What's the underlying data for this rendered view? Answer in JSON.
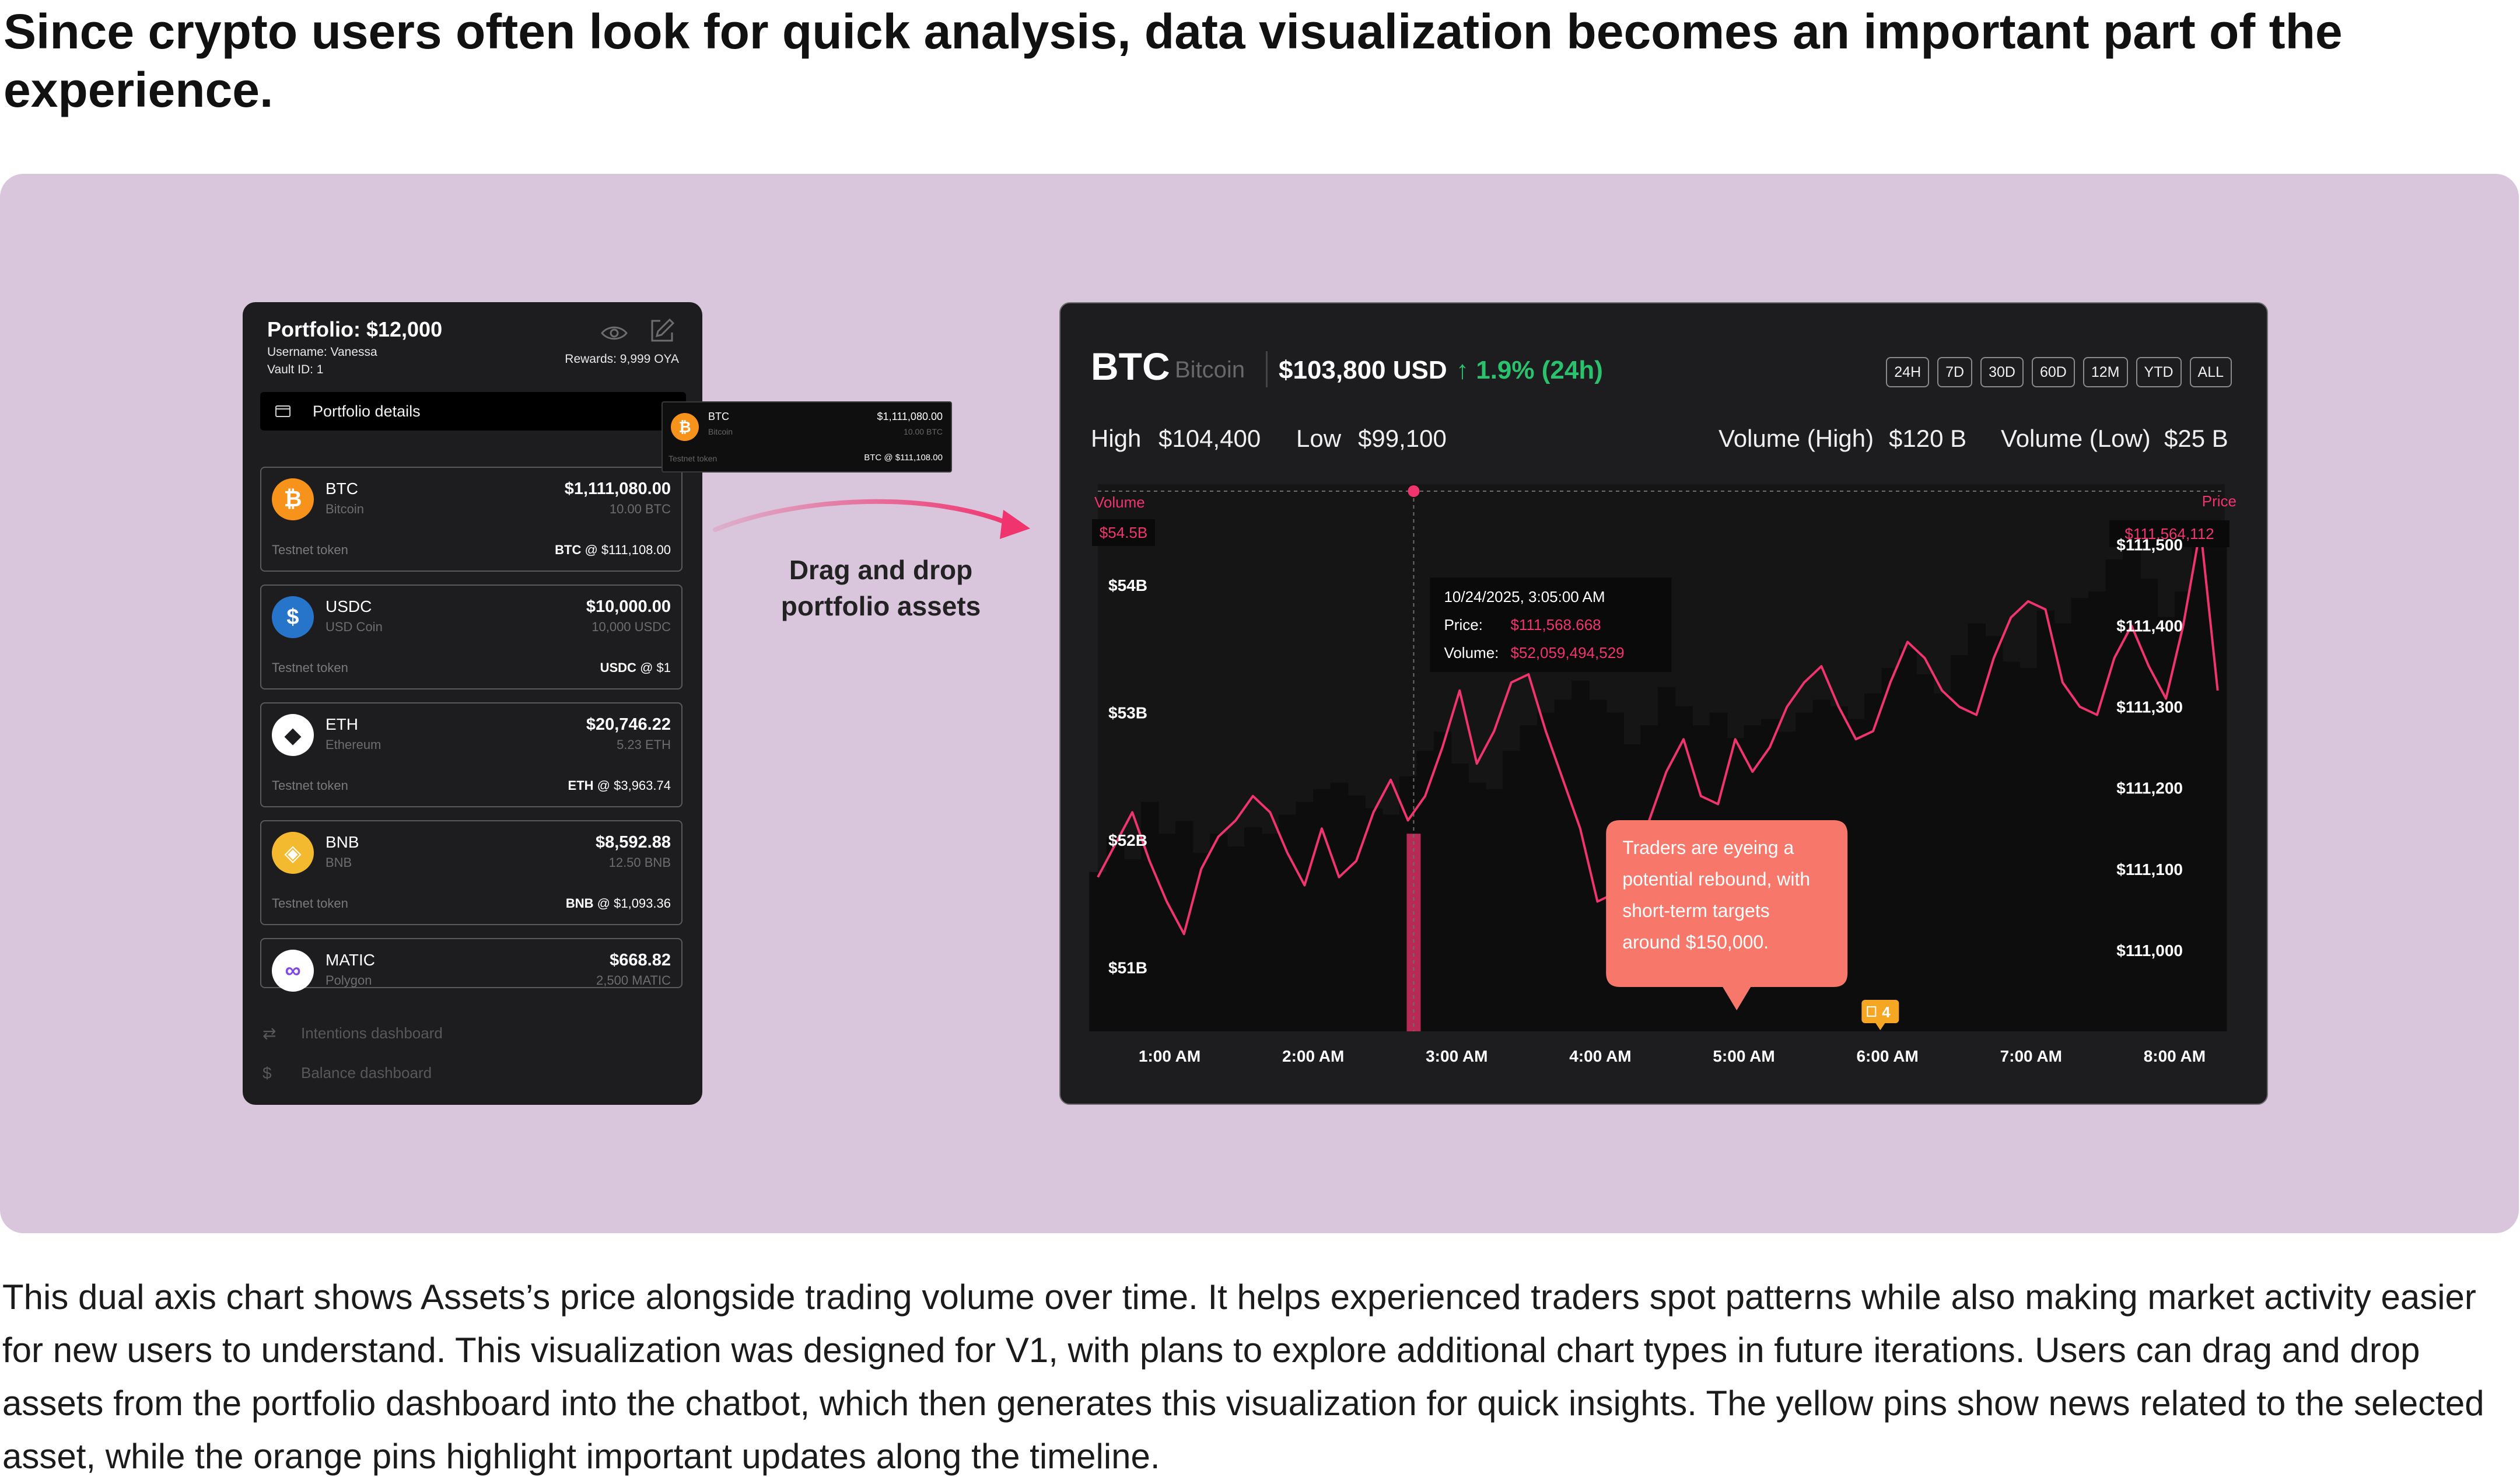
{
  "heading": "Since crypto users often look for quick analysis, data visualization becomes an important part of the experience.",
  "description": "This dual axis chart shows Assets’s price alongside trading volume over time. It helps experienced traders spot patterns while also making market activity easier for new users to understand. This visualization was designed for V1, with plans to explore additional chart types in future iterations. Users can drag and drop assets from the portfolio dashboard into the chatbot, which then generates this visualization for quick insights. The yellow pins show news related to the selected asset, while the orange pins highlight important updates along the timeline.",
  "colors": {
    "stage_bg": "#d9c5dc",
    "panel_bg": "#1d1d1f",
    "accent_pink": "#f0346e",
    "up_green": "#2bc26e",
    "callout": "#f7786b",
    "pin": "#f5a623"
  },
  "portfolio": {
    "title": "Portfolio: $12,000",
    "username": "Username: Vanessa",
    "vault": "Vault ID: 1",
    "rewards": "Rewards: 9,999 OYA",
    "details_label": "Portfolio details",
    "assets": [
      {
        "symbol": "BTC",
        "name": "Bitcoin",
        "value": "$1,111,080.00",
        "qty": "10.00 BTC",
        "token": "Testnet token",
        "price_sym": "BTC",
        "price": "@ $111,108.00",
        "icon": "bitcoin-icon",
        "color": "#f7931a",
        "glyph": "₿"
      },
      {
        "symbol": "USDC",
        "name": "USD Coin",
        "value": "$10,000.00",
        "qty": "10,000 USDC",
        "token": "Testnet token",
        "price_sym": "USDC",
        "price": "@ $1",
        "icon": "usdc-icon",
        "color": "#2775ca",
        "glyph": "$"
      },
      {
        "symbol": "ETH",
        "name": "Ethereum",
        "value": "$20,746.22",
        "qty": "5.23 ETH",
        "token": "Testnet token",
        "price_sym": "ETH",
        "price": "@ $3,963.74",
        "icon": "ethereum-icon",
        "color": "#ffffff",
        "glyph": "◆"
      },
      {
        "symbol": "BNB",
        "name": "BNB",
        "value": "$8,592.88",
        "qty": "12.50 BNB",
        "token": "Testnet token",
        "price_sym": "BNB",
        "price": "@ $1,093.36",
        "icon": "bnb-icon",
        "color": "#f3ba2f",
        "glyph": "◈"
      },
      {
        "symbol": "MATIC",
        "name": "Polygon",
        "value": "$668.82",
        "qty": "2,500 MATIC",
        "token": "",
        "price_sym": "",
        "price": "",
        "icon": "polygon-icon",
        "color": "#ffffff",
        "glyph": "∞"
      }
    ],
    "nav": [
      {
        "label": "Intentions dashboard",
        "icon": "repeat-icon"
      },
      {
        "label": "Balance dashboard",
        "icon": "dollar-icon"
      }
    ]
  },
  "ghost": {
    "symbol": "BTC",
    "name": "Bitcoin",
    "value": "$1,111,080.00",
    "qty": "10.00 BTC",
    "token": "Testnet token",
    "price": "BTC @ $111,108.00"
  },
  "drag_label": [
    "Drag and drop",
    "portfolio assets"
  ],
  "chart_panel": {
    "symbol": "BTC",
    "name": "Bitcoin",
    "price": "$103,800 USD",
    "change": "↑ 1.9% (24h)",
    "ranges": [
      "24H",
      "7D",
      "30D",
      "60D",
      "12M",
      "YTD",
      "ALL"
    ],
    "high_label": "High",
    "high_value": "$104,400",
    "low_label": "Low",
    "low_value": "$99,100",
    "vol_high_label": "Volume (High)",
    "vol_high_value": "$120 B",
    "vol_low_label": "Volume (Low)",
    "vol_low_value": "$25 B"
  },
  "chart_data": {
    "type": "line",
    "dual_axis": true,
    "left_axis_label": "Volume",
    "right_axis_label": "Price",
    "left_ticks": [
      "$54B",
      "$53B",
      "$52B",
      "$51B"
    ],
    "right_ticks": [
      "$111,500",
      "$111,400",
      "$111,300",
      "$111,200",
      "$111,100",
      "$111,000"
    ],
    "x_ticks": [
      "1:00 AM",
      "2:00 AM",
      "3:00 AM",
      "4:00 AM",
      "5:00 AM",
      "6:00 AM",
      "7:00 AM",
      "8:00 AM"
    ],
    "left_marker": "$54.5B",
    "right_marker": "$111,564,112",
    "volume_range": [
      50.5,
      54.7
    ],
    "price_range": [
      110900,
      111560
    ],
    "x_range": [
      0.5,
      8.35
    ],
    "grid": false,
    "tooltip": {
      "time": "10/24/2025, 3:05:00 AM",
      "price_label": "Price:",
      "price": "$111,568.668",
      "volume_label": "Volume:",
      "volume": "$52,059,494,529"
    },
    "highlight_x": 2.7,
    "highlight_volume": 52.05,
    "annotation": "Traders are eyeing a potential rebound, with short-term targets around $150,000.",
    "annotation_x": 4.95,
    "pin": {
      "label": "4",
      "x": 5.95
    },
    "volume_series": {
      "name": "Volume",
      "x": [
        0.5,
        0.62,
        0.74,
        0.86,
        0.98,
        1.1,
        1.22,
        1.34,
        1.46,
        1.58,
        1.7,
        1.82,
        1.94,
        2.06,
        2.18,
        2.3,
        2.42,
        2.54,
        2.66,
        2.78,
        2.9,
        3.02,
        3.14,
        3.26,
        3.38,
        3.5,
        3.62,
        3.74,
        3.86,
        3.98,
        4.1,
        4.22,
        4.34,
        4.46,
        4.58,
        4.7,
        4.82,
        4.94,
        5.06,
        5.18,
        5.3,
        5.42,
        5.54,
        5.66,
        5.78,
        5.9,
        6.02,
        6.14,
        6.26,
        6.38,
        6.5,
        6.62,
        6.74,
        6.86,
        6.98,
        7.1,
        7.22,
        7.34,
        7.46,
        7.58,
        7.7,
        7.82,
        7.94,
        8.06,
        8.18,
        8.3
      ],
      "values": [
        51.75,
        52.02,
        51.85,
        52.3,
        52.05,
        52.15,
        51.9,
        52.05,
        51.95,
        52.1,
        52.05,
        52.2,
        52.3,
        52.4,
        52.45,
        52.35,
        52.25,
        52.2,
        52.5,
        52.7,
        52.85,
        52.6,
        52.45,
        52.4,
        52.7,
        52.9,
        53.0,
        53.1,
        53.25,
        53.1,
        53.0,
        52.75,
        52.9,
        53.2,
        53.05,
        52.9,
        53.0,
        52.8,
        52.9,
        52.95,
        52.85,
        53.0,
        53.1,
        53.05,
        52.95,
        53.15,
        53.35,
        53.5,
        53.3,
        53.15,
        53.45,
        53.7,
        53.6,
        53.4,
        53.35,
        53.8,
        53.7,
        53.9,
        53.95,
        54.2,
        54.35,
        54.05,
        53.75,
        53.95,
        54.5,
        54.3
      ]
    },
    "price_series": {
      "name": "Price",
      "x": [
        0.5,
        0.62,
        0.74,
        0.86,
        0.98,
        1.1,
        1.22,
        1.34,
        1.46,
        1.58,
        1.7,
        1.82,
        1.94,
        2.06,
        2.18,
        2.3,
        2.42,
        2.54,
        2.66,
        2.78,
        2.9,
        3.02,
        3.14,
        3.26,
        3.38,
        3.5,
        3.62,
        3.74,
        3.86,
        3.98,
        4.1,
        4.22,
        4.34,
        4.46,
        4.58,
        4.7,
        4.82,
        4.94,
        5.06,
        5.18,
        5.3,
        5.42,
        5.54,
        5.66,
        5.78,
        5.9,
        6.02,
        6.14,
        6.26,
        6.38,
        6.5,
        6.62,
        6.74,
        6.86,
        6.98,
        7.1,
        7.22,
        7.34,
        7.46,
        7.58,
        7.7,
        7.82,
        7.94,
        8.06,
        8.18,
        8.3
      ],
      "values": [
        111090,
        111130,
        111170,
        111110,
        111060,
        111020,
        111100,
        111140,
        111160,
        111190,
        111170,
        111120,
        111080,
        111150,
        111090,
        111110,
        111170,
        111210,
        111160,
        111190,
        111250,
        111320,
        111230,
        111270,
        111330,
        111340,
        111270,
        111210,
        111150,
        111060,
        111070,
        111100,
        111160,
        111220,
        111260,
        111190,
        111180,
        111260,
        111220,
        111250,
        111300,
        111330,
        111350,
        111300,
        111260,
        111270,
        111330,
        111380,
        111360,
        111320,
        111300,
        111290,
        111360,
        111410,
        111430,
        111420,
        111330,
        111300,
        111290,
        111360,
        111400,
        111350,
        111310,
        111400,
        111520,
        111320
      ]
    }
  }
}
